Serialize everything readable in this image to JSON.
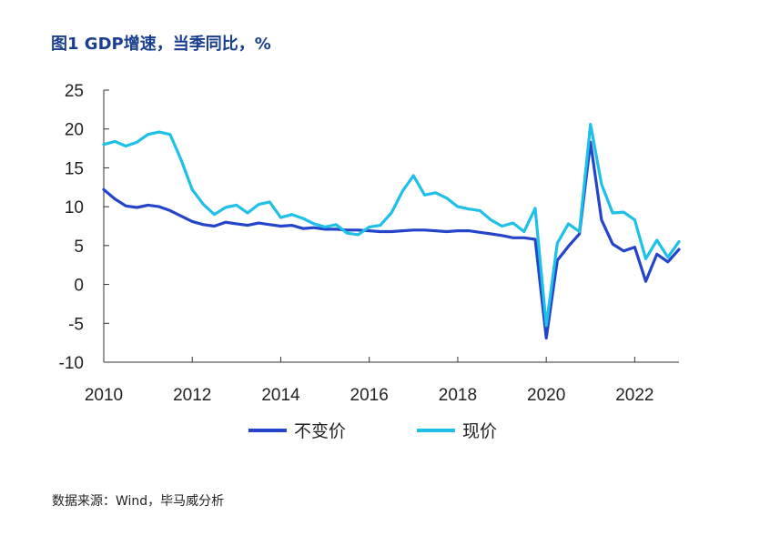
{
  "title": "图1  GDP增速，当季同比，%",
  "source": "数据来源：Wind，毕马威分析",
  "chart_data": {
    "type": "line",
    "xlim": [
      2010,
      2023.0
    ],
    "ylim": [
      -10,
      25
    ],
    "x_ticks": [
      2010,
      2012,
      2014,
      2016,
      2018,
      2020,
      2022
    ],
    "x_tick_labels": [
      "2010",
      "2012",
      "2014",
      "2016",
      "2018",
      "2020",
      "2022"
    ],
    "y_ticks": [
      25,
      20,
      15,
      10,
      5,
      0,
      -5,
      -10
    ],
    "y_tick_labels": [
      "25",
      "20",
      "15",
      "10",
      "5",
      "0",
      "-5",
      "-10"
    ],
    "grid": false,
    "legend_position": "bottom",
    "x": [
      2010.0,
      2010.25,
      2010.5,
      2010.75,
      2011.0,
      2011.25,
      2011.5,
      2011.75,
      2012.0,
      2012.25,
      2012.5,
      2012.75,
      2013.0,
      2013.25,
      2013.5,
      2013.75,
      2014.0,
      2014.25,
      2014.5,
      2014.75,
      2015.0,
      2015.25,
      2015.5,
      2015.75,
      2016.0,
      2016.25,
      2016.5,
      2016.75,
      2017.0,
      2017.25,
      2017.5,
      2017.75,
      2018.0,
      2018.25,
      2018.5,
      2018.75,
      2019.0,
      2019.25,
      2019.5,
      2019.75,
      2020.0,
      2020.25,
      2020.5,
      2020.75,
      2021.0,
      2021.25,
      2021.5,
      2021.75,
      2022.0,
      2022.25,
      2022.5,
      2022.75,
      2023.0
    ],
    "series": [
      {
        "name": "不变价",
        "color": "#2445c9",
        "values": [
          12.2,
          11.0,
          10.1,
          9.9,
          10.2,
          10.0,
          9.5,
          8.8,
          8.1,
          7.7,
          7.5,
          8.0,
          7.8,
          7.6,
          7.9,
          7.7,
          7.5,
          7.6,
          7.2,
          7.3,
          7.1,
          7.1,
          7.0,
          7.0,
          6.9,
          6.8,
          6.8,
          6.9,
          7.0,
          7.0,
          6.9,
          6.8,
          6.9,
          6.9,
          6.7,
          6.5,
          6.3,
          6.0,
          6.0,
          5.8,
          -6.9,
          3.1,
          4.9,
          6.5,
          18.3,
          8.3,
          5.2,
          4.3,
          4.8,
          0.4,
          3.9,
          2.9,
          4.5
        ]
      },
      {
        "name": "现价",
        "color": "#1ec0e8",
        "values": [
          18.0,
          18.4,
          17.8,
          18.3,
          19.3,
          19.6,
          19.3,
          16.0,
          12.2,
          10.3,
          9.0,
          9.9,
          10.2,
          9.2,
          10.3,
          10.6,
          8.6,
          9.0,
          8.5,
          7.8,
          7.4,
          7.7,
          6.6,
          6.4,
          7.4,
          7.6,
          9.2,
          12.0,
          14.0,
          11.5,
          11.8,
          11.1,
          10.0,
          9.7,
          9.5,
          8.3,
          7.5,
          7.9,
          6.8,
          9.8,
          -5.3,
          5.3,
          7.8,
          6.8,
          20.6,
          12.9,
          9.2,
          9.3,
          8.3,
          3.3,
          5.7,
          3.5,
          5.5
        ]
      }
    ]
  }
}
